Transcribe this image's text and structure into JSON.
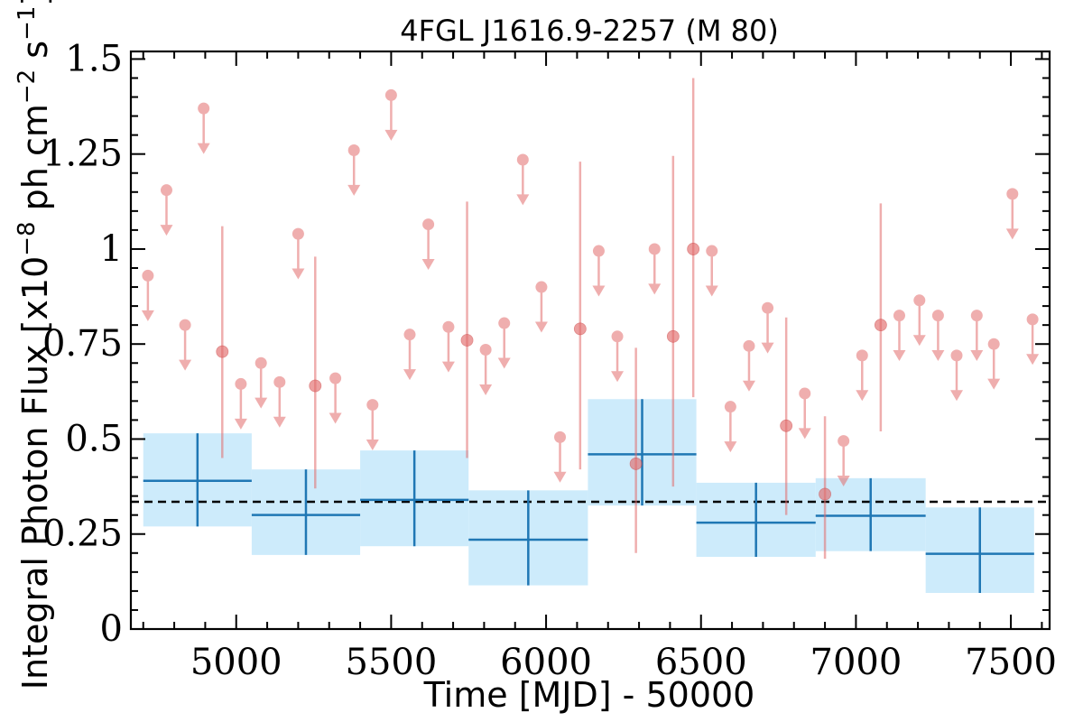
{
  "chart_data": {
    "type": "scatter",
    "title": "4FGL J1616.9-2257 (M 80)",
    "xlabel": "Time [MJD] - 50000",
    "ylabel_parts": {
      "prefix": "Integral Photon Flux [x10",
      "exp1": "−8",
      "mid": " ph cm",
      "exp2": "−2",
      "mid2": " s",
      "exp3": "−1",
      "suffix": "]"
    },
    "xlim": [
      4660,
      7625
    ],
    "ylim": [
      0,
      1.52
    ],
    "xticks": [
      {
        "value": 5000,
        "label": "5000"
      },
      {
        "value": 5500,
        "label": "5500"
      },
      {
        "value": 6000,
        "label": "6000"
      },
      {
        "value": 6500,
        "label": "6500"
      },
      {
        "value": 7000,
        "label": "7000"
      },
      {
        "value": 7500,
        "label": "7500"
      }
    ],
    "yticks": [
      {
        "value": 0,
        "label": "0"
      },
      {
        "value": 0.25,
        "label": "0.25"
      },
      {
        "value": 0.5,
        "label": "0.5"
      },
      {
        "value": 0.75,
        "label": "0.75"
      },
      {
        "value": 1.0,
        "label": "1"
      },
      {
        "value": 1.25,
        "label": "1.25"
      },
      {
        "value": 1.5,
        "label": "1.5"
      }
    ],
    "average_flux": 0.335,
    "colors": {
      "bin_fill": "#cdebfb",
      "bin_line": "#1f77b4",
      "short_marker": "#e26d6d",
      "average_line": "#000000"
    },
    "series": [
      {
        "kind": "long_bins",
        "points": [
          {
            "x0": 4700,
            "x1": 5050,
            "y": 0.39,
            "ylo": 0.27,
            "yhi": 0.515
          },
          {
            "x0": 5050,
            "x1": 5400,
            "y": 0.3,
            "ylo": 0.195,
            "yhi": 0.42
          },
          {
            "x0": 5400,
            "x1": 5750,
            "y": 0.34,
            "ylo": 0.218,
            "yhi": 0.47
          },
          {
            "x0": 5750,
            "x1": 6135,
            "y": 0.235,
            "ylo": 0.115,
            "yhi": 0.365
          },
          {
            "x0": 6135,
            "x1": 6485,
            "y": 0.46,
            "ylo": 0.325,
            "yhi": 0.605
          },
          {
            "x0": 6485,
            "x1": 6870,
            "y": 0.28,
            "ylo": 0.19,
            "yhi": 0.385
          },
          {
            "x0": 6870,
            "x1": 7225,
            "y": 0.298,
            "ylo": 0.205,
            "yhi": 0.397
          },
          {
            "x0": 7225,
            "x1": 7575,
            "y": 0.198,
            "ylo": 0.095,
            "yhi": 0.32
          }
        ]
      },
      {
        "kind": "short_bins",
        "upper_limits": [
          {
            "x": 4715,
            "y": 0.93
          },
          {
            "x": 4775,
            "y": 1.155
          },
          {
            "x": 4835,
            "y": 0.8
          },
          {
            "x": 4895,
            "y": 1.37
          },
          {
            "x": 5015,
            "y": 0.645
          },
          {
            "x": 5080,
            "y": 0.7
          },
          {
            "x": 5140,
            "y": 0.65
          },
          {
            "x": 5200,
            "y": 1.04
          },
          {
            "x": 5320,
            "y": 0.66
          },
          {
            "x": 5380,
            "y": 1.26
          },
          {
            "x": 5440,
            "y": 0.59
          },
          {
            "x": 5500,
            "y": 1.405
          },
          {
            "x": 5560,
            "y": 0.775
          },
          {
            "x": 5620,
            "y": 1.065
          },
          {
            "x": 5685,
            "y": 0.795
          },
          {
            "x": 5805,
            "y": 0.735
          },
          {
            "x": 5865,
            "y": 0.805
          },
          {
            "x": 5925,
            "y": 1.235
          },
          {
            "x": 5985,
            "y": 0.9
          },
          {
            "x": 6045,
            "y": 0.505
          },
          {
            "x": 6170,
            "y": 0.995
          },
          {
            "x": 6230,
            "y": 0.77
          },
          {
            "x": 6350,
            "y": 1.0
          },
          {
            "x": 6535,
            "y": 0.995
          },
          {
            "x": 6595,
            "y": 0.585
          },
          {
            "x": 6655,
            "y": 0.745
          },
          {
            "x": 6715,
            "y": 0.845
          },
          {
            "x": 6835,
            "y": 0.62
          },
          {
            "x": 6960,
            "y": 0.495
          },
          {
            "x": 7020,
            "y": 0.72
          },
          {
            "x": 7140,
            "y": 0.825
          },
          {
            "x": 7205,
            "y": 0.865
          },
          {
            "x": 7265,
            "y": 0.825
          },
          {
            "x": 7325,
            "y": 0.72
          },
          {
            "x": 7390,
            "y": 0.825
          },
          {
            "x": 7445,
            "y": 0.75
          },
          {
            "x": 7505,
            "y": 1.145
          },
          {
            "x": 7570,
            "y": 0.815
          }
        ],
        "detections": [
          {
            "x": 4955,
            "y": 0.73,
            "ylo": 0.45,
            "yhi": 1.06
          },
          {
            "x": 5255,
            "y": 0.64,
            "ylo": 0.37,
            "yhi": 0.98
          },
          {
            "x": 5745,
            "y": 0.76,
            "ylo": 0.45,
            "yhi": 1.125
          },
          {
            "x": 6110,
            "y": 0.79,
            "ylo": 0.42,
            "yhi": 1.23
          },
          {
            "x": 6290,
            "y": 0.435,
            "ylo": 0.2,
            "yhi": 0.74
          },
          {
            "x": 6410,
            "y": 0.77,
            "ylo": 0.375,
            "yhi": 1.245
          },
          {
            "x": 6475,
            "y": 1.0,
            "ylo": 0.61,
            "yhi": 1.45
          },
          {
            "x": 6775,
            "y": 0.535,
            "ylo": 0.3,
            "yhi": 0.82
          },
          {
            "x": 6900,
            "y": 0.355,
            "ylo": 0.185,
            "yhi": 0.56
          },
          {
            "x": 7080,
            "y": 0.8,
            "ylo": 0.52,
            "yhi": 1.12
          }
        ]
      }
    ]
  }
}
